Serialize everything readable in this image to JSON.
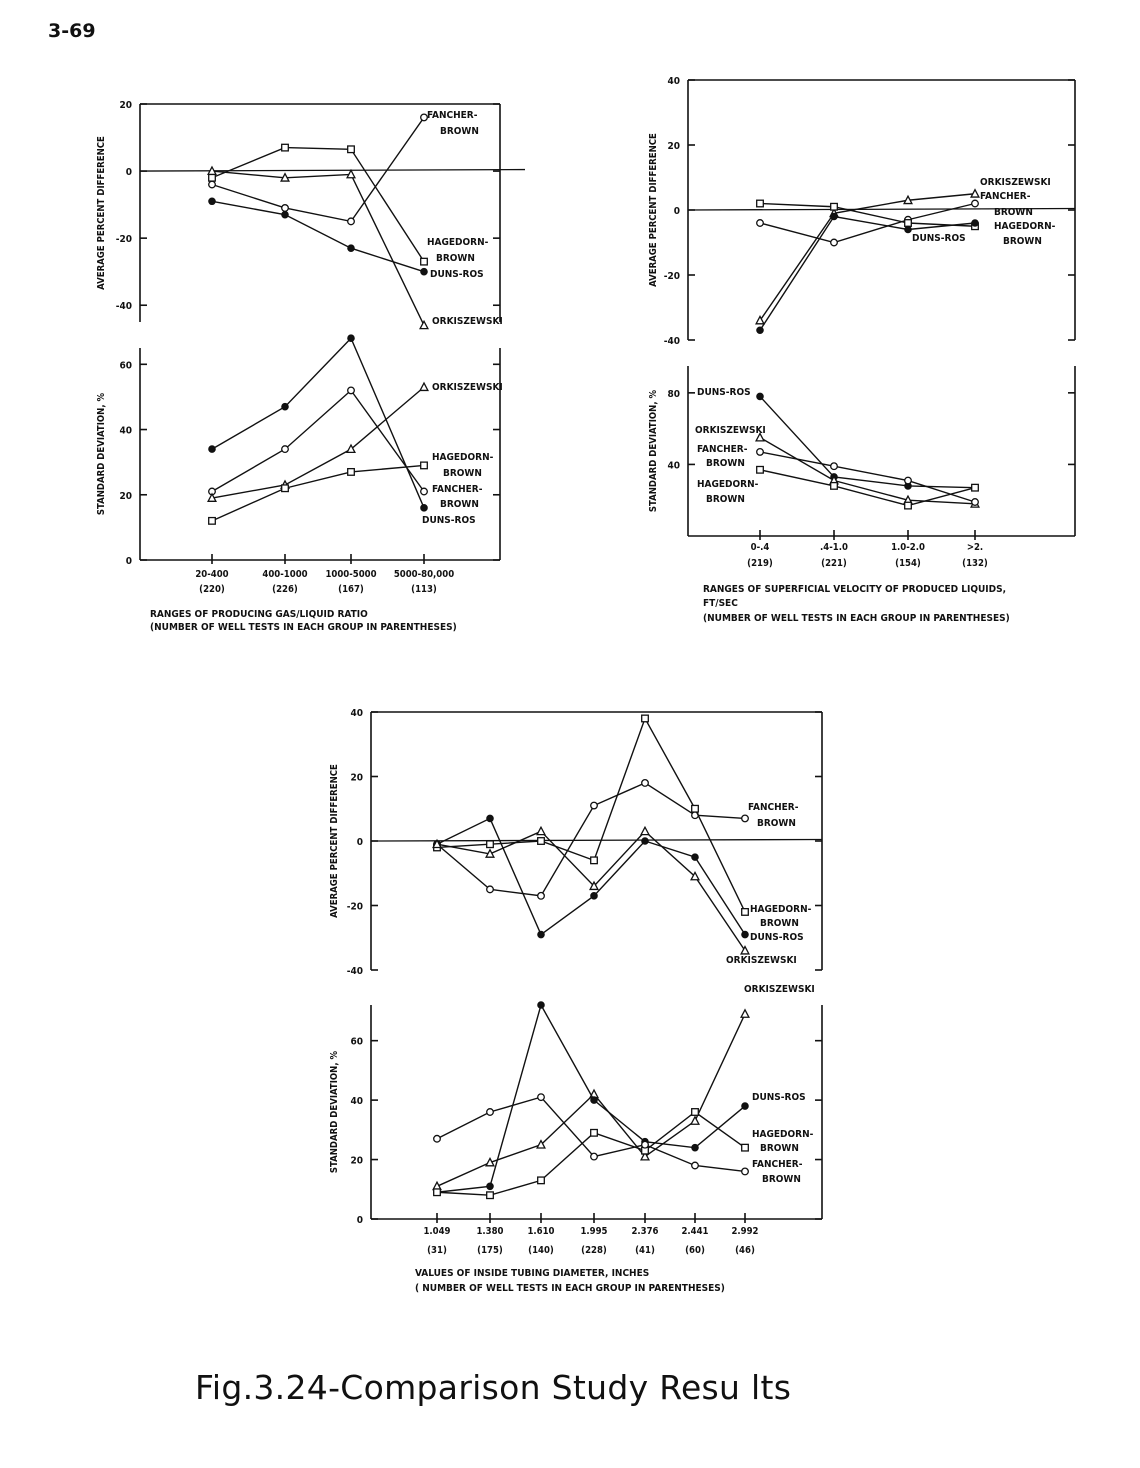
{
  "page_number": "3-69",
  "caption": "Fig.3.24-Comparison Study Resu lts",
  "chart_data": [
    {
      "type": "line",
      "id": "chart1",
      "xlabel": "RANGES OF PRODUCING GAS/LIQUID RATIO",
      "xlabel2": "(NUMBER OF WELL TESTS IN EACH GROUP IN PARENTHESES)",
      "categories": [
        "20-400",
        "400-1000",
        "1000-5000",
        "5000-80,000"
      ],
      "counts": [
        "(220)",
        "(226)",
        "(167)",
        "(113)"
      ],
      "top": {
        "ylabel": "AVERAGE PERCENT DIFFERENCE",
        "ylim": [
          -45,
          20
        ],
        "yticks": [
          20,
          0,
          -20,
          -40
        ],
        "series": [
          {
            "name": "FANCHER-BROWN",
            "marker": "circle",
            "values": [
              -4,
              -11,
              -15,
              16
            ]
          },
          {
            "name": "HAGEDORN-BROWN",
            "marker": "square",
            "values": [
              -2,
              7,
              6.5,
              -27
            ]
          },
          {
            "name": "DUNS-ROS",
            "marker": "dot",
            "values": [
              -9,
              -13,
              -23,
              -30
            ]
          },
          {
            "name": "ORKISZEWSKI",
            "marker": "triangle",
            "values": [
              0,
              -2,
              -1,
              -46
            ]
          }
        ]
      },
      "bottom": {
        "ylabel": "STANDARD DEVIATION, %",
        "ylim": [
          0,
          65
        ],
        "yticks": [
          0,
          20,
          40,
          60
        ],
        "series": [
          {
            "name": "DUNS-ROS",
            "marker": "dot",
            "values": [
              34,
              47,
              68,
              16
            ]
          },
          {
            "name": "FANCHER-BROWN",
            "marker": "circle",
            "values": [
              21,
              34,
              52,
              21
            ]
          },
          {
            "name": "ORKISZEWSKI",
            "marker": "triangle",
            "values": [
              19,
              23,
              34,
              53
            ]
          },
          {
            "name": "HAGEDORN-BROWN",
            "marker": "square",
            "values": [
              12,
              22,
              27,
              29
            ]
          }
        ]
      }
    },
    {
      "type": "line",
      "id": "chart2",
      "xlabel": "RANGES OF SUPERFICIAL VELOCITY OF PRODUCED LIQUIDS,",
      "xlabel2": "FT/SEC",
      "xlabel3": "(NUMBER OF WELL TESTS IN EACH GROUP IN PARENTHESES)",
      "categories": [
        "0-.4",
        ".4-1.0",
        "1.0-2.0",
        ">2."
      ],
      "counts": [
        "(219)",
        "(221)",
        "(154)",
        "(132)"
      ],
      "top": {
        "ylabel": "AVERAGE PERCENT DIFFERENCE",
        "ylim": [
          -40,
          40
        ],
        "yticks": [
          40,
          20,
          0,
          -20,
          -40
        ],
        "series": [
          {
            "name": "ORKISZEWSKI",
            "marker": "triangle",
            "values": [
              -34,
              -1,
              3,
              5
            ]
          },
          {
            "name": "FANCHER-BROWN",
            "marker": "circle",
            "values": [
              -4,
              -10,
              -3,
              2
            ]
          },
          {
            "name": "HAGEDORN-BROWN",
            "marker": "square",
            "values": [
              2,
              1,
              -4,
              -5
            ]
          },
          {
            "name": "DUNS-ROS",
            "marker": "dot",
            "values": [
              -37,
              -2,
              -6,
              -4
            ]
          }
        ]
      },
      "bottom": {
        "ylabel": "STANDARD DEVIATION, %",
        "ylim": [
          0,
          95
        ],
        "yticks": [
          80,
          40
        ],
        "series": [
          {
            "name": "DUNS-ROS",
            "marker": "dot",
            "values": [
              78,
              33,
              28,
              27
            ]
          },
          {
            "name": "ORKISZEWSKI",
            "marker": "triangle",
            "values": [
              55,
              31,
              20,
              18
            ]
          },
          {
            "name": "FANCHER-BROWN",
            "marker": "circle",
            "values": [
              47,
              39,
              31,
              19
            ]
          },
          {
            "name": "HAGEDORN-BROWN",
            "marker": "square",
            "values": [
              37,
              28,
              17,
              27
            ]
          }
        ]
      }
    },
    {
      "type": "line",
      "id": "chart3",
      "xlabel": "VALUES OF INSIDE TUBING DIAMETER, INCHES",
      "xlabel2": "( NUMBER OF WELL TESTS IN EACH GROUP IN PARENTHESES)",
      "categories": [
        "1.049",
        "1.380",
        "1.610",
        "1.995",
        "2.376",
        "2.441",
        "2.992"
      ],
      "counts": [
        "(31)",
        "(175)",
        "(140)",
        "(228)",
        "(41)",
        "(60)",
        "(46)"
      ],
      "top": {
        "ylabel": "AVERAGE PERCENT DIFFERENCE",
        "ylim": [
          -40,
          40
        ],
        "yticks": [
          40,
          20,
          0,
          -20,
          -40
        ],
        "series": [
          {
            "name": "FANCHER-BROWN",
            "marker": "circle",
            "values": [
              -1,
              -15,
              -17,
              11,
              18,
              8,
              7
            ]
          },
          {
            "name": "HAGEDORN-BROWN",
            "marker": "square",
            "values": [
              -2,
              -1,
              0,
              -6,
              38,
              10,
              -22
            ]
          },
          {
            "name": "DUNS-ROS",
            "marker": "dot",
            "values": [
              -1,
              7,
              -29,
              -17,
              0,
              -5,
              -29
            ]
          },
          {
            "name": "ORKISZEWSKI",
            "marker": "triangle",
            "values": [
              -1,
              -4,
              3,
              -14,
              3,
              -11,
              -34
            ]
          }
        ]
      },
      "bottom": {
        "ylabel": "STANDARD DEVIATION, %",
        "ylim": [
          0,
          72
        ],
        "yticks": [
          0,
          20,
          40,
          60
        ],
        "series": [
          {
            "name": "ORKISZEWSKI",
            "marker": "triangle",
            "values": [
              11,
              19,
              25,
              42,
              21,
              33,
              69
            ]
          },
          {
            "name": "DUNS-ROS",
            "marker": "dot",
            "values": [
              9,
              11,
              72,
              40,
              26,
              24,
              38
            ]
          },
          {
            "name": "HAGEDORN-BROWN",
            "marker": "square",
            "values": [
              9,
              8,
              13,
              29,
              23,
              36,
              24
            ]
          },
          {
            "name": "FANCHER-BROWN",
            "marker": "circle",
            "values": [
              27,
              36,
              41,
              21,
              25,
              18,
              16
            ]
          }
        ]
      }
    }
  ]
}
